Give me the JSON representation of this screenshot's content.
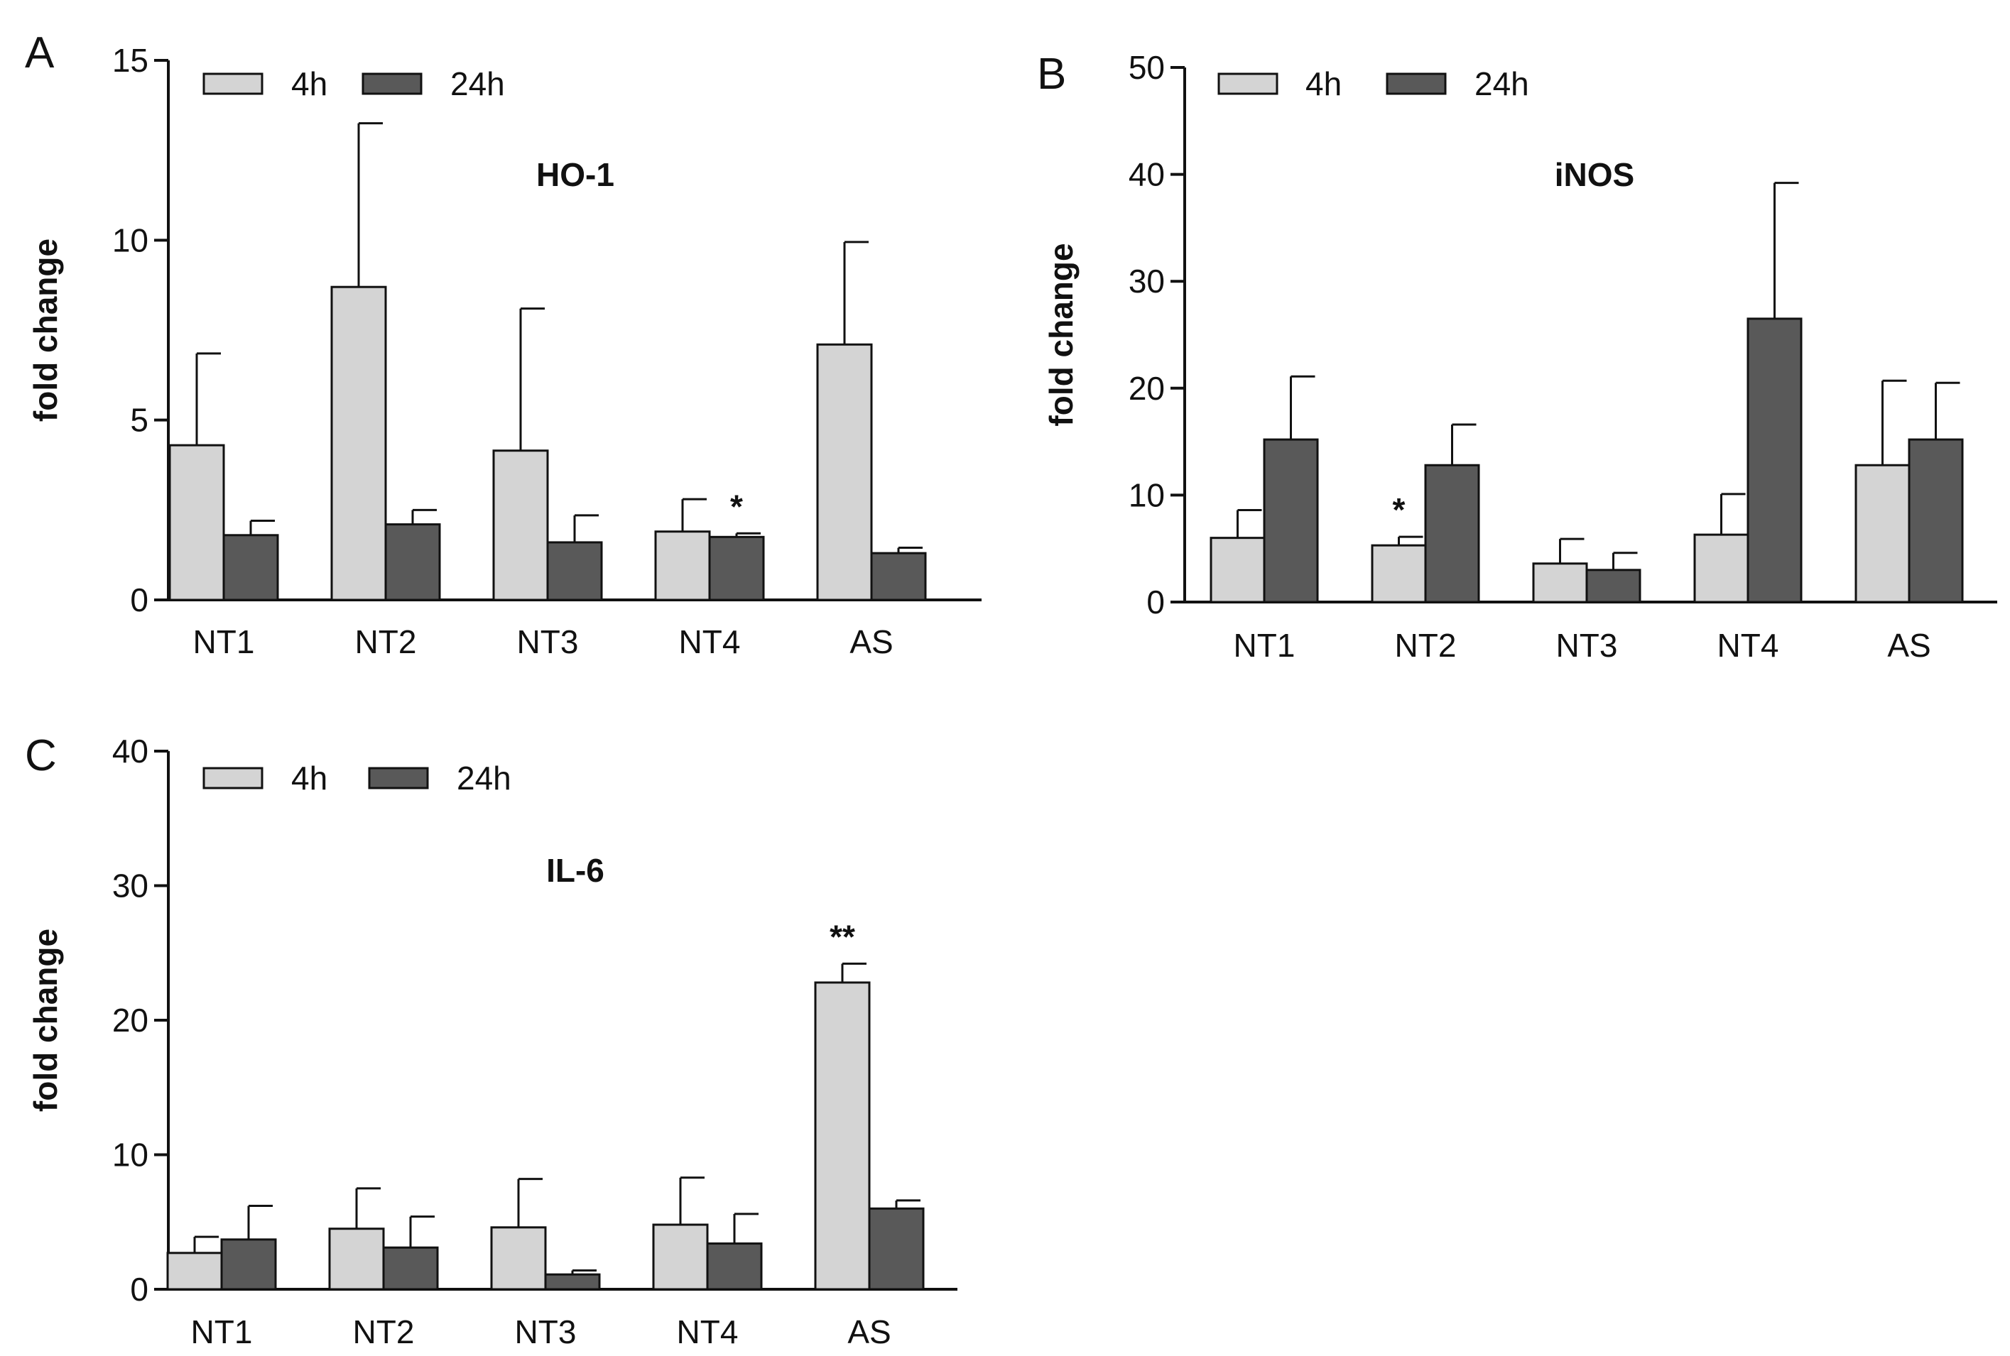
{
  "chart_data": [
    {
      "panel": "A",
      "type": "bar",
      "title": "HO-1",
      "ylabel": "fold change",
      "xlabel": "",
      "ylim": [
        0,
        15
      ],
      "yticks": [
        0,
        5,
        10,
        15
      ],
      "grid": false,
      "legend_position": "top-left",
      "categories": [
        "NT1",
        "NT2",
        "NT3",
        "NT4",
        "AS"
      ],
      "series": [
        {
          "name": "4h",
          "color": "#d4d4d4",
          "values": [
            4.3,
            8.7,
            4.15,
            1.9,
            7.1
          ],
          "errors": [
            2.55,
            4.55,
            3.95,
            0.9,
            2.85
          ]
        },
        {
          "name": "24h",
          "color": "#595959",
          "values": [
            1.8,
            2.1,
            1.6,
            1.75,
            1.3
          ],
          "errors": [
            0.4,
            0.4,
            0.75,
            0.1,
            0.15
          ]
        }
      ],
      "annotations": [
        {
          "text": "*",
          "category": "NT4",
          "series": "24h"
        }
      ]
    },
    {
      "panel": "B",
      "type": "bar",
      "title": "iNOS",
      "ylabel": "fold change",
      "xlabel": "",
      "ylim": [
        0,
        50
      ],
      "yticks": [
        0,
        10,
        20,
        30,
        40,
        50
      ],
      "grid": false,
      "legend_position": "top-left",
      "categories": [
        "NT1",
        "NT2",
        "NT3",
        "NT4",
        "AS"
      ],
      "series": [
        {
          "name": "4h",
          "color": "#d4d4d4",
          "values": [
            6.0,
            5.3,
            3.6,
            6.3,
            12.8
          ],
          "errors": [
            2.6,
            0.8,
            2.3,
            3.8,
            7.9
          ]
        },
        {
          "name": "24h",
          "color": "#595959",
          "values": [
            15.2,
            12.8,
            3.0,
            26.5,
            15.2
          ],
          "errors": [
            5.9,
            3.8,
            1.6,
            12.7,
            5.3
          ]
        }
      ],
      "annotations": [
        {
          "text": "*",
          "category": "NT2",
          "series": "4h"
        }
      ]
    },
    {
      "panel": "C",
      "type": "bar",
      "title": "IL-6",
      "ylabel": "fold change",
      "xlabel": "",
      "ylim": [
        0,
        40
      ],
      "yticks": [
        0,
        10,
        20,
        30,
        40
      ],
      "grid": false,
      "legend_position": "top-left",
      "categories": [
        "NT1",
        "NT2",
        "NT3",
        "NT4",
        "AS"
      ],
      "series": [
        {
          "name": "4h",
          "color": "#d4d4d4",
          "values": [
            2.7,
            4.5,
            4.6,
            4.8,
            22.8
          ],
          "errors": [
            1.2,
            3.0,
            3.6,
            3.5,
            1.4
          ]
        },
        {
          "name": "24h",
          "color": "#595959",
          "values": [
            3.7,
            3.1,
            1.1,
            3.4,
            6.0
          ],
          "errors": [
            2.5,
            2.3,
            0.3,
            2.2,
            0.6
          ]
        }
      ],
      "annotations": [
        {
          "text": "**",
          "category": "AS",
          "series": "4h"
        }
      ]
    }
  ]
}
